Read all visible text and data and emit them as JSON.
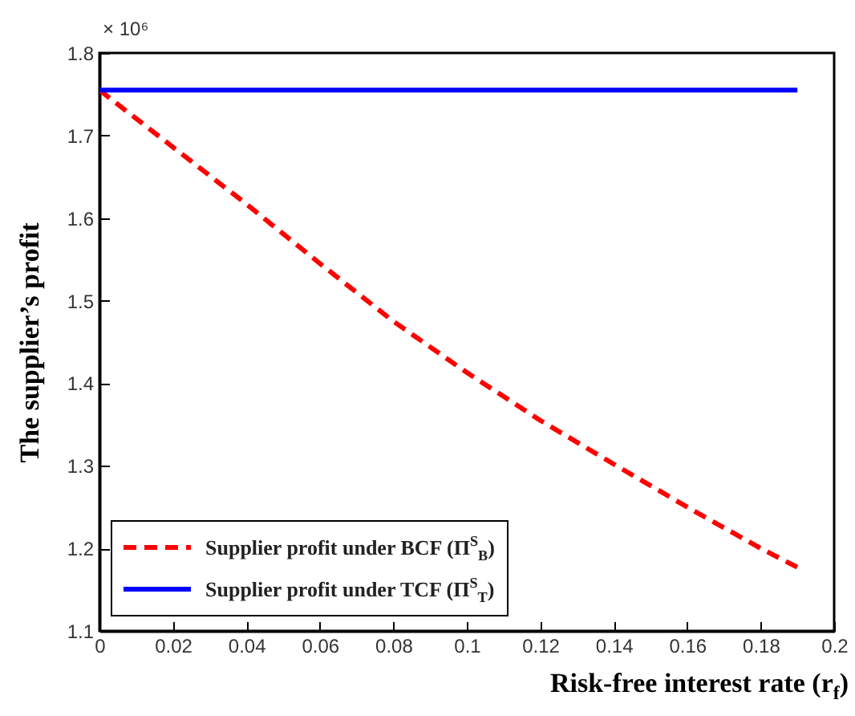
{
  "chart_data": {
    "type": "line",
    "xlabel": "Risk-free interest rate (r$_{f}$)",
    "ylabel": "The supplier’s profit",
    "annotations": [
      "× 10⁶"
    ],
    "x": [
      0,
      0.02,
      0.04,
      0.06,
      0.08,
      0.1,
      0.12,
      0.14,
      0.16,
      0.18,
      0.19
    ],
    "series": [
      {
        "name": "Supplier profit under BCF (Π$^{S}$$_{B}$)",
        "color": "#ff0000",
        "line_style": "dashed",
        "values": [
          1.755,
          1.686,
          1.617,
          1.545,
          1.475,
          1.413,
          1.355,
          1.302,
          1.25,
          1.2,
          1.177
        ]
      },
      {
        "name": "Supplier profit under TCF (Π$^{S}$$_{T}$)",
        "color": "#0000ff",
        "line_style": "solid",
        "values": [
          1.755,
          1.755,
          1.755,
          1.755,
          1.755,
          1.755,
          1.755,
          1.755,
          1.755,
          1.755,
          1.755
        ]
      }
    ],
    "xlim": [
      0,
      0.2
    ],
    "xticks": [
      0,
      0.02,
      0.04,
      0.06,
      0.08,
      0.1,
      0.12,
      0.14,
      0.16,
      0.18,
      {
        "value": 0.2,
        "label": "0.2"
      }
    ],
    "ylim": [
      1.1,
      1.8
    ],
    "yticks": [
      1.1,
      1.2,
      1.3,
      1.4,
      1.5,
      1.6,
      1.7,
      1.8
    ],
    "grid": false,
    "legend": "bottom left",
    "marker": "none"
  }
}
